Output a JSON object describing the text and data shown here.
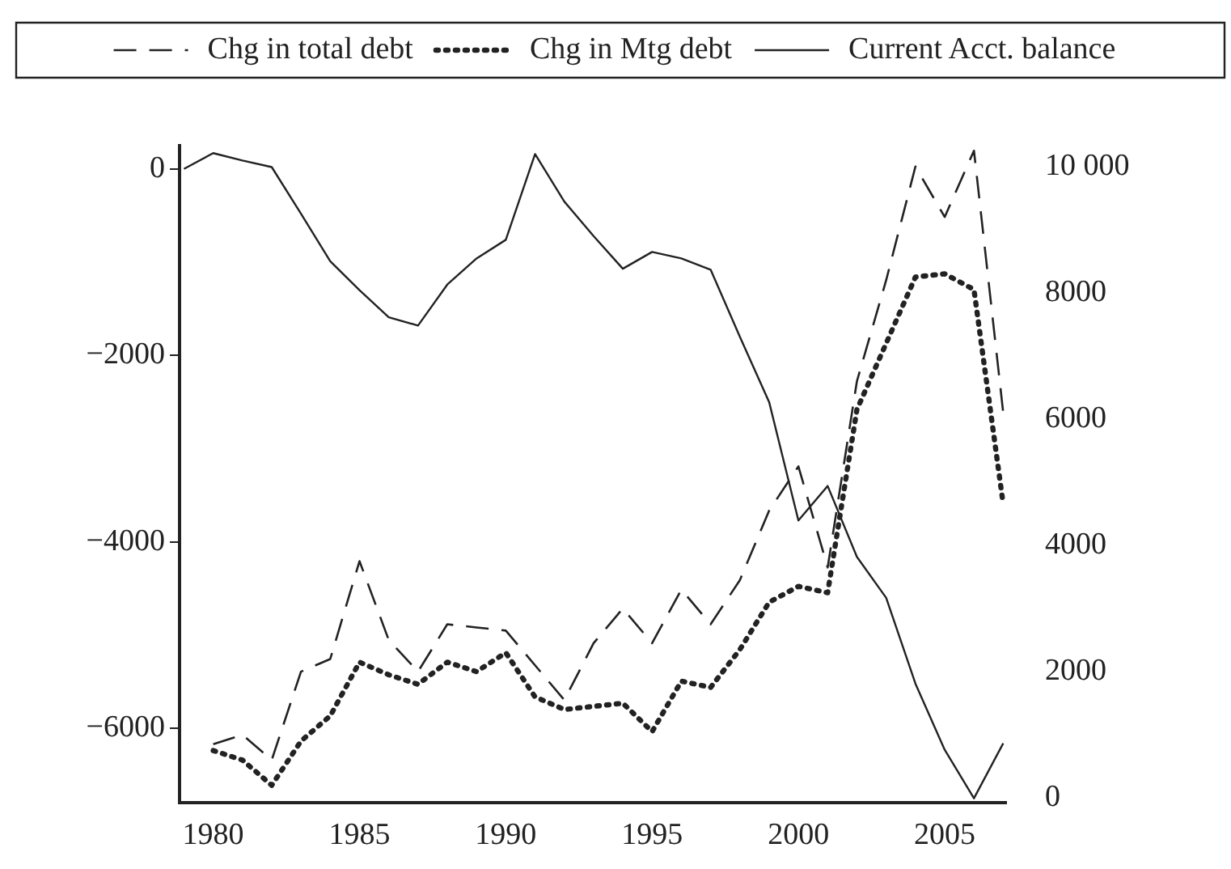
{
  "chart_data": {
    "type": "line",
    "legend": "top",
    "grid": false,
    "marker": "none",
    "x": [
      1979,
      1980,
      1981,
      1982,
      1983,
      1984,
      1985,
      1986,
      1987,
      1988,
      1989,
      1990,
      1991,
      1992,
      1993,
      1994,
      1995,
      1996,
      1997,
      1998,
      1999,
      2000,
      2001,
      2002,
      2003,
      2004,
      2005,
      2006,
      2007
    ],
    "xlim": [
      1978.85,
      2007.1
    ],
    "xticks": [
      1980,
      1985,
      1990,
      1995,
      2000,
      2005
    ],
    "ylim": [
      -6800,
      250
    ],
    "yticks": [
      -6000,
      -4000,
      -2000,
      0
    ],
    "y2lim": [
      -80,
      10330
    ],
    "y2ticks": [
      0,
      2000,
      4000,
      6000,
      8000,
      {
        "value": 10000,
        "label": "10 000"
      }
    ],
    "series": [
      {
        "name": "Chg in total debt",
        "color": "#222222",
        "line_style": "dashed",
        "axis": "y2",
        "values": [
          null,
          850,
          1000,
          600,
          2000,
          2200,
          3750,
          2500,
          2000,
          2750,
          2700,
          2650,
          2100,
          1550,
          2450,
          3000,
          2450,
          3300,
          2750,
          3450,
          4550,
          5250,
          3650,
          6600,
          8200,
          10000,
          9200,
          10250,
          6100
        ]
      },
      {
        "name": "Chg in Mtg debt",
        "color": "#222222",
        "line_style": "dotted",
        "axis": "y2",
        "values": [
          null,
          750,
          600,
          200,
          900,
          1300,
          2150,
          1950,
          1800,
          2150,
          2000,
          2300,
          1600,
          1400,
          1450,
          1500,
          1050,
          1850,
          1750,
          2350,
          3100,
          3350,
          3250,
          6150,
          7200,
          8250,
          8300,
          8050,
          4650
        ]
      },
      {
        "name": "Current Acct. balance",
        "color": "#222222",
        "line_style": "solid",
        "axis": "y",
        "values": [
          0,
          170,
          90,
          20,
          -480,
          -990,
          -1300,
          -1590,
          -1680,
          -1240,
          -960,
          -760,
          160,
          -350,
          -720,
          -1070,
          -890,
          -960,
          -1080,
          -1800,
          -2500,
          -3770,
          -3400,
          -4160,
          -4600,
          -5520,
          -6230,
          -6750,
          -6160
        ]
      }
    ]
  }
}
